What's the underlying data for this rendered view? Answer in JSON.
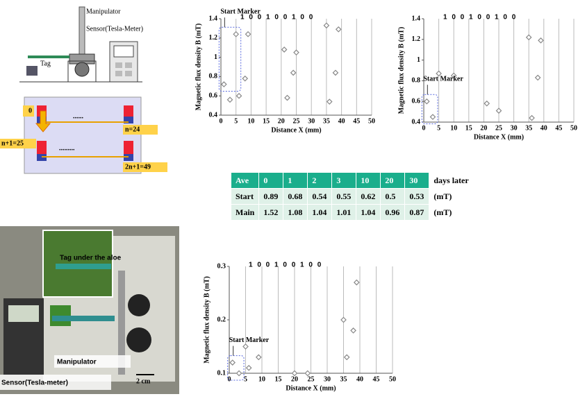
{
  "chart_data": [
    {
      "type": "scatter",
      "annotation": "Start Marker",
      "bits": "1 0 0 1 0 0 1 0 0",
      "y_label": "Magnetic flux density B (mT)",
      "x_label": "Distance X (mm)",
      "x": [
        1,
        3,
        5,
        6,
        8,
        9,
        21,
        22,
        24,
        25,
        35,
        36,
        38,
        39
      ],
      "values": [
        0.72,
        0.56,
        1.24,
        0.6,
        0.78,
        1.24,
        1.08,
        0.58,
        0.84,
        1.05,
        1.33,
        0.54,
        0.84,
        1.29
      ],
      "xlim": [
        0,
        50
      ],
      "xticks": [
        0,
        5,
        10,
        15,
        20,
        25,
        30,
        35,
        40,
        45,
        50
      ],
      "ylim": [
        0.4,
        1.4
      ],
      "yticks": [
        0.4,
        0.6,
        0.8,
        1,
        1.2,
        1.4
      ],
      "grid": true,
      "color": "#888888"
    },
    {
      "type": "scatter",
      "annotation": "Start Marker",
      "bits": "1 0 0 1 0 0 1 0 0",
      "y_label": "Magnetic flux density B (mT)",
      "x_label": "Distance X (mm)",
      "x": [
        1,
        3,
        5,
        10,
        21,
        25,
        35,
        36,
        38,
        39
      ],
      "values": [
        0.6,
        0.45,
        0.87,
        0.85,
        0.58,
        0.51,
        1.22,
        0.44,
        0.83,
        1.19
      ],
      "xlim": [
        0,
        50
      ],
      "xticks": [
        0,
        5,
        10,
        15,
        20,
        25,
        30,
        35,
        40,
        45,
        50
      ],
      "ylim": [
        0.4,
        1.4
      ],
      "yticks": [
        0.4,
        0.6,
        0.8,
        1,
        1.2,
        1.4
      ],
      "grid": true,
      "color": "#888888"
    },
    {
      "type": "scatter",
      "annotation": "Start Marker",
      "bits": "1 0 0 1 0 0 1 0 0",
      "y_label": "Magnetic flux density B (mT)",
      "x_label": "Distance X (mm)",
      "x": [
        1,
        3,
        5,
        6,
        9,
        20,
        24,
        35,
        36,
        38,
        39
      ],
      "values": [
        0.12,
        0.1,
        0.15,
        0.11,
        0.13,
        0.1,
        0.1,
        0.2,
        0.13,
        0.18,
        0.27
      ],
      "xlim": [
        0,
        50
      ],
      "xticks": [
        0,
        5,
        10,
        15,
        20,
        25,
        30,
        35,
        40,
        45,
        50
      ],
      "ylim": [
        0.1,
        0.3
      ],
      "yticks": [
        0.1,
        0.2,
        0.3
      ],
      "grid": true,
      "color": "#888888"
    }
  ],
  "table": {
    "header": [
      "Ave",
      "0",
      "1",
      "2",
      "3",
      "10",
      "20",
      "30"
    ],
    "header_suffix": "days later",
    "rows": [
      [
        "Start",
        "0.89",
        "0.68",
        "0.54",
        "0.55",
        "0.62",
        "0.5",
        "0.53"
      ],
      [
        "Main",
        "1.52",
        "1.08",
        "1.04",
        "1.01",
        "1.04",
        "0.96",
        "0.87"
      ]
    ],
    "row_suffix": [
      "(mT)",
      "(mT)"
    ]
  },
  "setup": {
    "manipulator": "Manipulator",
    "sensor": "Sensor(Tesla-Meter)",
    "tag": "Tag"
  },
  "layout": {
    "start": "0",
    "n": "n=24",
    "n1": "n+1=25",
    "end": "2n+1=49",
    "dots1": "......",
    "dots2": "........."
  },
  "photo": {
    "tag": "Tag under the aloe",
    "manipulator": "Manipulator",
    "sensor": "Sensor(Tesla-meter)",
    "scale": "2 cm"
  }
}
